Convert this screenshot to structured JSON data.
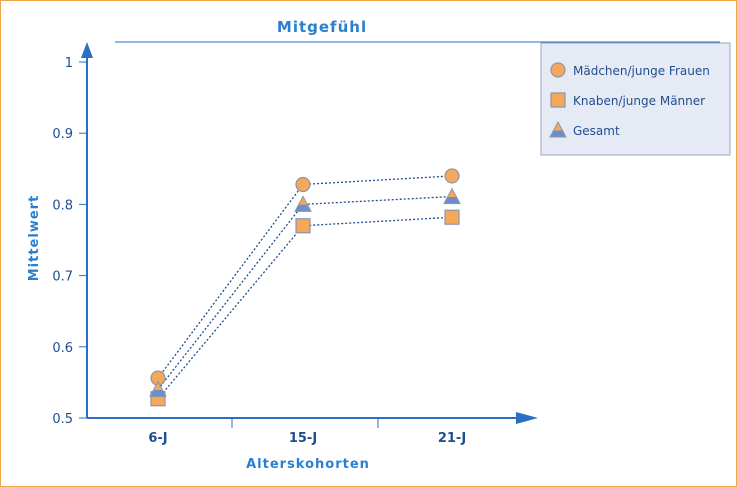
{
  "chart_data": {
    "type": "line",
    "title": "Mitgefühl",
    "xlabel": "Alterskohorten",
    "ylabel": "Mittelwert",
    "categories": [
      "6-J",
      "15-J",
      "21-J"
    ],
    "ylim": [
      0.5,
      1.0
    ],
    "yticks": [
      "0.5",
      "0.6",
      "0.7",
      "0.8",
      "0.9",
      "1"
    ],
    "grid": false,
    "legend_position": "top-right",
    "series": [
      {
        "name": "Mädchen/junge Frauen",
        "marker": "circle",
        "values": [
          0.556,
          0.828,
          0.84
        ]
      },
      {
        "name": "Knaben/junge Männer",
        "marker": "square",
        "values": [
          0.527,
          0.77,
          0.782
        ]
      },
      {
        "name": "Gesamt",
        "marker": "triangle",
        "values": [
          0.54,
          0.8,
          0.811
        ]
      }
    ],
    "colors": {
      "marker_fill": "#f5a85a",
      "marker_stroke": "#8a96ac",
      "triangle_fill": "#6d8fc9",
      "axis": "#2a6fc4",
      "line": "#1f4f8f",
      "legend_bg": "#e6eaf4",
      "legend_border": "#9aa6c4",
      "frame": "#f0a64a"
    }
  }
}
